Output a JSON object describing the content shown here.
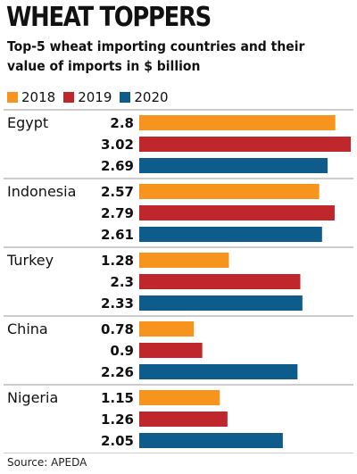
{
  "header": {
    "title": "WHEAT TOPPERS",
    "subtitle_line1": "Top-5 wheat importing countries and their",
    "subtitle_line2": "value of imports in $ billion"
  },
  "legend": [
    {
      "label": "2018",
      "color": "#f7941d"
    },
    {
      "label": "2019",
      "color": "#c0272d"
    },
    {
      "label": "2020",
      "color": "#0d5c8c"
    }
  ],
  "source": "Source: APEDA",
  "chart_data": {
    "type": "bar",
    "orientation": "horizontal",
    "title": "WHEAT TOPPERS",
    "subtitle": "Top-5 wheat importing countries and their value of imports in $ billion",
    "categories": [
      "Egypt",
      "Indonesia",
      "Turkey",
      "China",
      "Nigeria"
    ],
    "series": [
      {
        "name": "2018",
        "color": "#f7941d",
        "values": [
          2.8,
          2.57,
          1.28,
          0.78,
          1.15
        ],
        "labels": [
          "2.8",
          "2.57",
          "1.28",
          "0.78",
          "1.15"
        ]
      },
      {
        "name": "2019",
        "color": "#c0272d",
        "values": [
          3.02,
          2.79,
          2.3,
          0.9,
          1.26
        ],
        "labels": [
          "3.02",
          "2.79",
          "2.3",
          "0.9",
          "1.26"
        ]
      },
      {
        "name": "2020",
        "color": "#0d5c8c",
        "values": [
          2.69,
          2.61,
          2.33,
          2.26,
          2.05
        ],
        "labels": [
          "2.69",
          "2.61",
          "2.33",
          "2.26",
          "2.05"
        ]
      }
    ],
    "xlim": [
      0,
      3.02
    ],
    "grid": false,
    "legend_position": "top-left",
    "source": "Source: APEDA"
  }
}
